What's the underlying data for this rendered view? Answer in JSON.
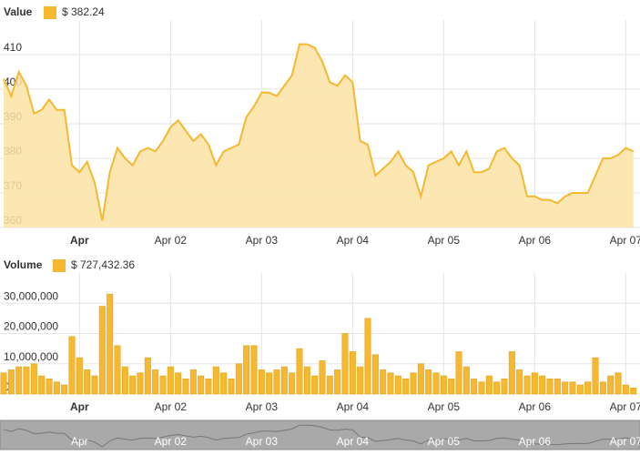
{
  "chart_data": [
    {
      "type": "area",
      "name": "Value",
      "legend_label": "$ 382.24",
      "color": "#f5b82e",
      "fill": "#fbe3a6",
      "categories": [
        null,
        null,
        null,
        null,
        null,
        null,
        null,
        null,
        null,
        null,
        "Apr",
        null,
        null,
        null,
        null,
        null,
        null,
        null,
        null,
        null,
        null,
        null,
        "Apr 02",
        null,
        null,
        null,
        null,
        null,
        null,
        null,
        null,
        null,
        null,
        null,
        "Apr 03",
        null,
        null,
        null,
        null,
        null,
        null,
        null,
        null,
        null,
        null,
        null,
        "Apr 04",
        null,
        null,
        null,
        null,
        null,
        null,
        null,
        null,
        null,
        null,
        null,
        "Apr 05",
        null,
        null,
        null,
        null,
        null,
        null,
        null,
        null,
        null,
        null,
        null,
        "Apr 06",
        null,
        null,
        null,
        null,
        null,
        null,
        null,
        null,
        null,
        null,
        null,
        "Apr 07",
        null
      ],
      "values": [
        403,
        398,
        405,
        401,
        393,
        394,
        397,
        394,
        394,
        378,
        376,
        379,
        373,
        362,
        376,
        383,
        380,
        378,
        382,
        383,
        382,
        385,
        389,
        391,
        388,
        385,
        387,
        384,
        378,
        382,
        383,
        384,
        392,
        395,
        399,
        399,
        398,
        401,
        404,
        413,
        413,
        412,
        408,
        402,
        401,
        404,
        402,
        385,
        384,
        375,
        377,
        379,
        382,
        378,
        376,
        369,
        378,
        379,
        380,
        382,
        378,
        382,
        376,
        376,
        377,
        382,
        383,
        380,
        378,
        369,
        369,
        368,
        368,
        367,
        369,
        370,
        370,
        370,
        375,
        380,
        380,
        381,
        383,
        382
      ],
      "ylim": [
        360,
        420
      ],
      "yticks": [
        360,
        370,
        380,
        390,
        400,
        410
      ],
      "grid": true
    },
    {
      "type": "bar",
      "name": "Volume",
      "legend_label": "$ 727,432.36",
      "color": "#f5b82e",
      "categories": [
        null,
        null,
        null,
        null,
        null,
        null,
        null,
        null,
        null,
        null,
        "Apr",
        null,
        null,
        null,
        null,
        null,
        null,
        null,
        null,
        null,
        null,
        null,
        "Apr 02",
        null,
        null,
        null,
        null,
        null,
        null,
        null,
        null,
        null,
        null,
        null,
        "Apr 03",
        null,
        null,
        null,
        null,
        null,
        null,
        null,
        null,
        null,
        null,
        null,
        "Apr 04",
        null,
        null,
        null,
        null,
        null,
        null,
        null,
        null,
        null,
        null,
        null,
        "Apr 05",
        null,
        null,
        null,
        null,
        null,
        null,
        null,
        null,
        null,
        null,
        null,
        "Apr 06",
        null,
        null,
        null,
        null,
        null,
        null,
        null,
        null,
        null,
        null,
        null,
        "Apr 07",
        null
      ],
      "values": [
        7000000,
        8000000,
        9000000,
        9000000,
        10000000,
        6000000,
        5000000,
        4000000,
        3000000,
        19000000,
        12000000,
        8000000,
        6000000,
        29000000,
        33000000,
        16000000,
        9000000,
        6000000,
        7000000,
        12000000,
        8000000,
        6000000,
        9000000,
        7000000,
        5000000,
        8000000,
        6000000,
        5000000,
        9000000,
        7000000,
        5000000,
        10000000,
        16000000,
        16000000,
        8000000,
        7000000,
        8000000,
        9000000,
        7000000,
        15000000,
        9000000,
        6000000,
        11000000,
        6000000,
        8000000,
        20000000,
        14000000,
        9000000,
        25000000,
        13000000,
        8000000,
        7000000,
        6000000,
        5000000,
        7000000,
        10000000,
        8000000,
        7000000,
        6000000,
        5000000,
        14000000,
        9000000,
        5000000,
        4000000,
        6000000,
        4000000,
        5000000,
        14000000,
        8000000,
        6000000,
        7000000,
        6000000,
        5000000,
        5000000,
        4000000,
        4000000,
        3000000,
        4000000,
        12000000,
        4000000,
        6000000,
        7000000,
        3000000,
        2000000
      ],
      "ylim": [
        0,
        40000000
      ],
      "yticks": [
        0,
        {
          "value": 10000000,
          "label": "10,000,000"
        },
        {
          "value": 20000000,
          "label": "20,000,000"
        },
        {
          "value": 30000000,
          "label": "30,000,000"
        }
      ],
      "grid": true
    }
  ]
}
